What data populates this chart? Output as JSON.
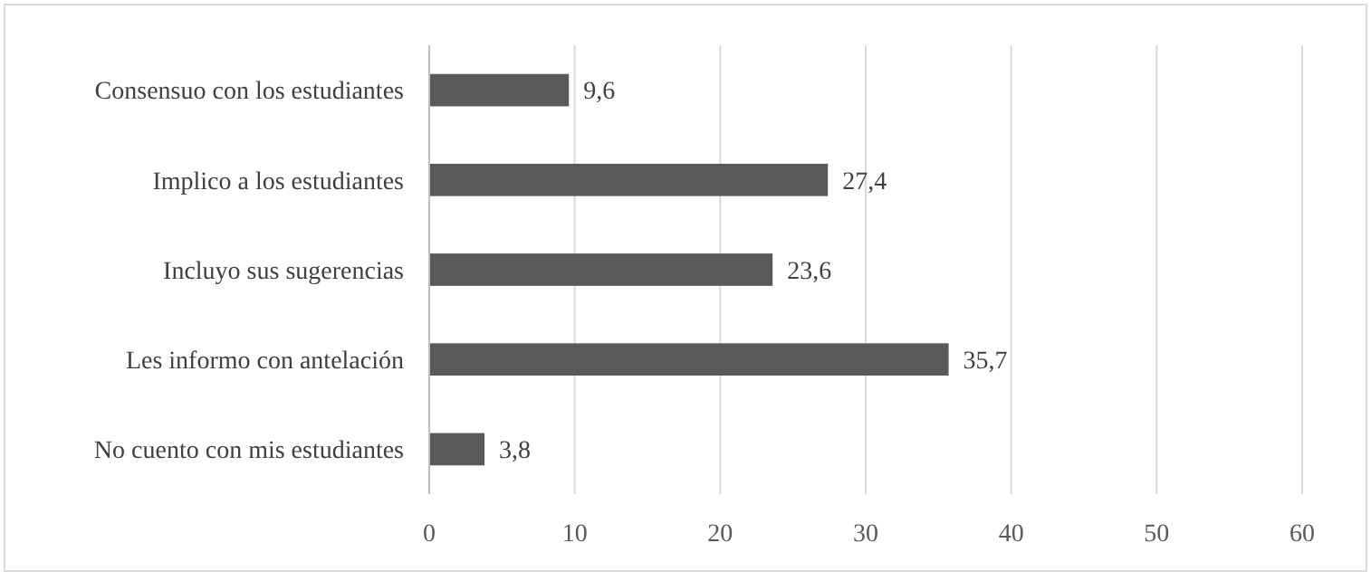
{
  "chart_data": {
    "type": "bar",
    "orientation": "horizontal",
    "categories": [
      "Consensuo con los estudiantes",
      "Implico a los estudiantes",
      "Incluyo sus sugerencias",
      "Les informo con antelación",
      "No cuento con mis estudiantes"
    ],
    "values": [
      9.6,
      27.4,
      23.6,
      35.7,
      3.8
    ],
    "value_labels": [
      "9,6",
      "27,4",
      "23,6",
      "35,7",
      "3,8"
    ],
    "color": "#595959",
    "xlim": [
      0,
      60
    ],
    "xticks": [
      0,
      10,
      20,
      30,
      40,
      50,
      60
    ],
    "grid": "x"
  }
}
